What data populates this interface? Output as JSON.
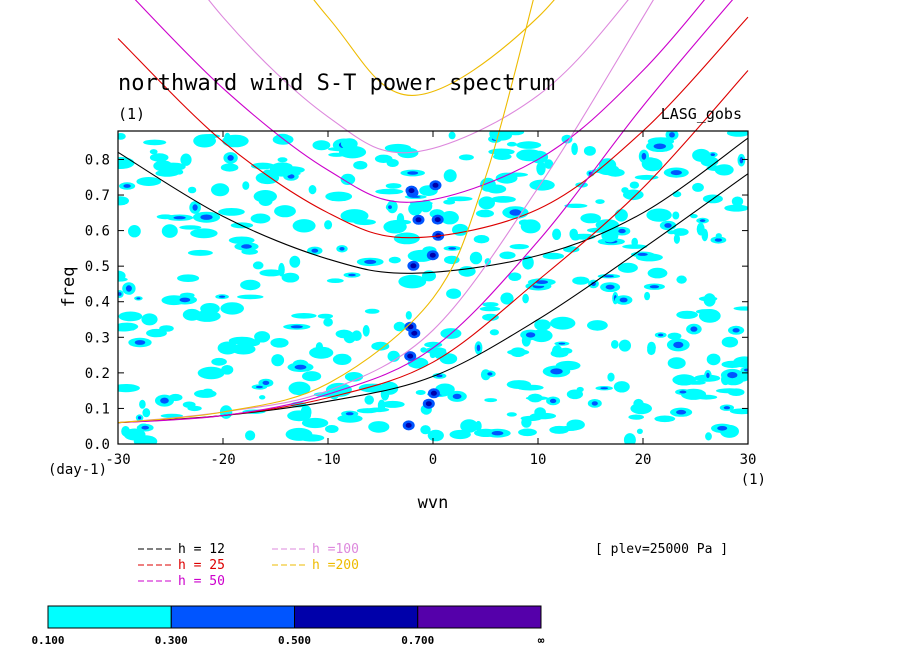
{
  "chart_data": {
    "type": "heatmap",
    "title": "northward wind S-T power spectrum",
    "subtitle": "(1)",
    "source_label": "LASG_gobs",
    "xlabel": "wvn",
    "ylabel": "freq",
    "x_unit_label": "(1)",
    "y_unit_label": "(day-1)",
    "xlim": [
      -30,
      30
    ],
    "ylim": [
      0,
      0.88
    ],
    "x_ticks": [
      -30,
      -20,
      -10,
      0,
      10,
      20,
      30
    ],
    "y_ticks": [
      0.0,
      0.1,
      0.2,
      0.3,
      0.4,
      0.5,
      0.6,
      0.7,
      0.8
    ],
    "x_tick_labels": [
      "-30",
      "-20",
      "-10",
      "0",
      "10",
      "20",
      "30"
    ],
    "y_tick_labels": [
      "0.0",
      "0.1",
      "0.2",
      "0.3",
      "0.4",
      "0.5",
      "0.6",
      "0.7",
      "0.8"
    ],
    "level_label": "[ plev=25000 Pa ]",
    "contour_levels": [
      "0.100",
      "0.300",
      "0.500",
      "0.700",
      "∞"
    ],
    "contour_colors": [
      "#00ffff",
      "#0055ff",
      "#0000aa",
      "#5500aa"
    ],
    "curve_legend": [
      {
        "label": "h = 12",
        "color": "#000000"
      },
      {
        "label": "h = 25",
        "color": "#dd0000"
      },
      {
        "label": "h = 50",
        "color": "#cc00cc"
      },
      {
        "label": "h =100",
        "color": "#dd88dd"
      },
      {
        "label": "h =200",
        "color": "#eebb00"
      }
    ],
    "dispersion_curves": [
      {
        "name": "h = 12",
        "color": "#000000",
        "branches": [
          {
            "x": [
              -30,
              -20,
              -10,
              -2,
              10,
              20,
              30
            ],
            "y": [
              0.82,
              0.64,
              0.52,
              0.48,
              0.53,
              0.65,
              0.86
            ]
          },
          {
            "x": [
              -30,
              -20,
              -10,
              0,
              10,
              20,
              30
            ],
            "y": [
              0.06,
              0.08,
              0.12,
              0.19,
              0.35,
              0.55,
              0.76
            ]
          }
        ]
      },
      {
        "name": "h = 25",
        "color": "#dd0000",
        "branches": [
          {
            "x": [
              -30,
              -20,
              -10,
              -2,
              10,
              20,
              30
            ],
            "y": [
              1.14,
              0.85,
              0.65,
              0.58,
              0.66,
              0.88,
              1.2
            ]
          },
          {
            "x": [
              -30,
              -20,
              -10,
              0,
              10,
              20,
              30
            ],
            "y": [
              0.06,
              0.08,
              0.13,
              0.23,
              0.46,
              0.72,
              1.05
            ]
          }
        ]
      },
      {
        "name": "h = 50",
        "color": "#cc00cc",
        "branches": [
          {
            "x": [
              -30,
              -20,
              -10,
              -2,
              10,
              20,
              30
            ],
            "y": [
              1.3,
              1.0,
              0.77,
              0.68,
              0.8,
              1.05,
              1.4
            ]
          },
          {
            "x": [
              -30,
              -20,
              -10,
              0,
              10,
              20,
              30
            ],
            "y": [
              0.06,
              0.08,
              0.14,
              0.27,
              0.57,
              0.95,
              1.3
            ]
          }
        ]
      },
      {
        "name": "h =100",
        "color": "#dd88dd",
        "branches": [
          {
            "x": [
              -30,
              -20,
              -10,
              -2,
              10,
              20,
              30
            ],
            "y": [
              1.6,
              1.2,
              0.92,
              0.82,
              0.98,
              1.3,
              1.7
            ]
          },
          {
            "x": [
              -30,
              -20,
              -10,
              0,
              10,
              20,
              30
            ],
            "y": [
              0.06,
              0.09,
              0.15,
              0.32,
              0.72,
              1.2,
              1.7
            ]
          }
        ]
      },
      {
        "name": "h =200",
        "color": "#eebb00",
        "branches": [
          {
            "x": [
              -20,
              -10,
              -2,
              10,
              20
            ],
            "y": [
              1.6,
              1.2,
              0.98,
              1.2,
              1.6
            ]
          },
          {
            "x": [
              -30,
              -20,
              -10,
              0,
              5,
              10
            ],
            "y": [
              0.06,
              0.09,
              0.17,
              0.41,
              0.75,
              1.3
            ]
          }
        ]
      }
    ],
    "grid": false
  }
}
